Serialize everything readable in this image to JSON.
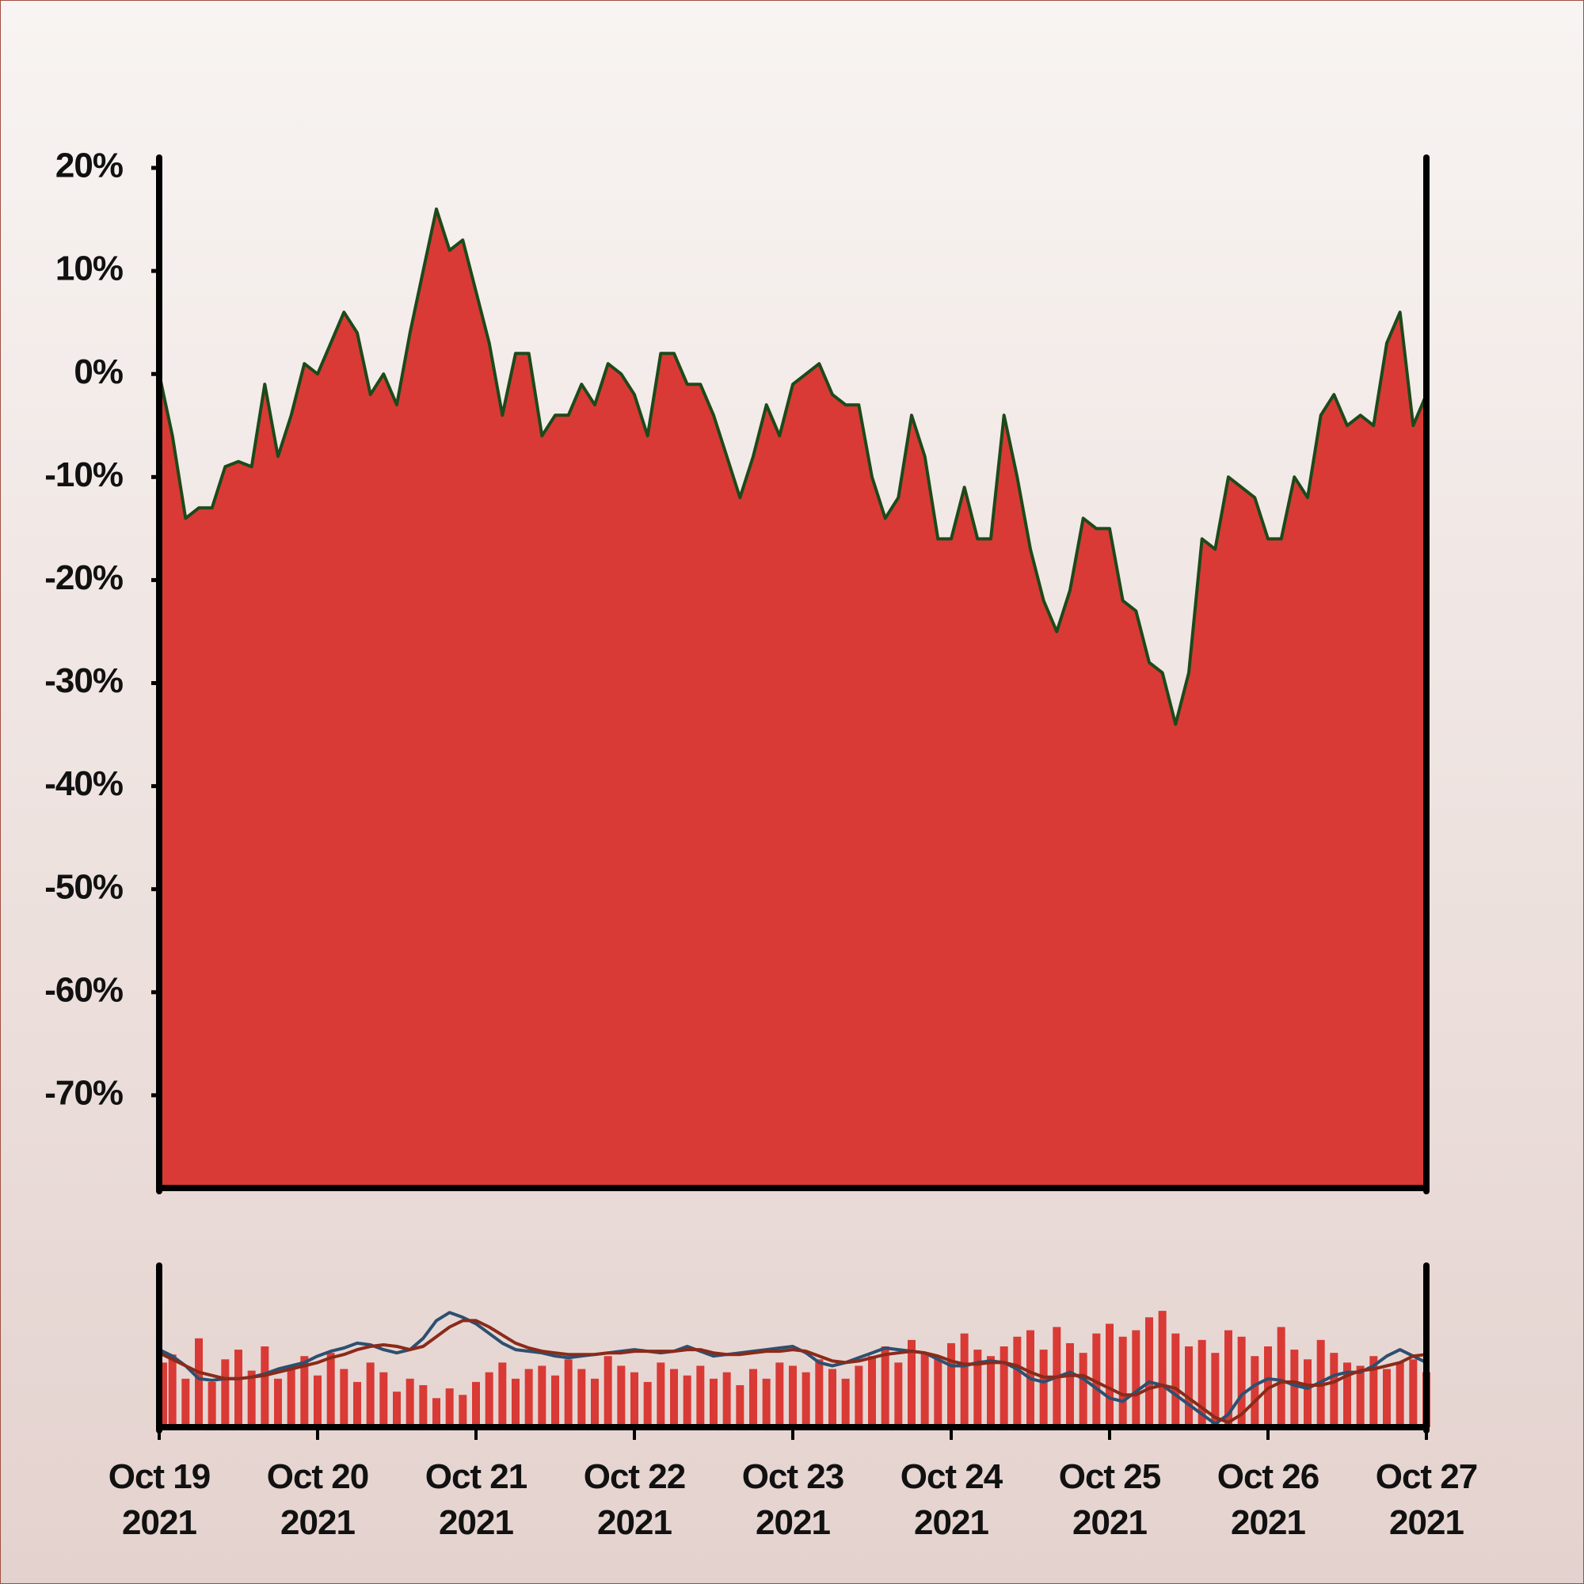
{
  "chart_data": [
    {
      "type": "area",
      "line_color": "#1d4a1a",
      "fill": "#d93a35",
      "xlim": [
        "2021-10-19 00:00",
        "2021-10-27 00:00"
      ],
      "ylim": [
        -79,
        21
      ],
      "yticks": [
        {
          "value": 20,
          "label": "20%"
        },
        {
          "value": 10,
          "label": "10%"
        },
        {
          "value": 0,
          "label": "0%"
        },
        {
          "value": -10,
          "label": "-10%"
        },
        {
          "value": -20,
          "label": "-20%"
        },
        {
          "value": -30,
          "label": "-30%"
        },
        {
          "value": -40,
          "label": "-40%"
        },
        {
          "value": -50,
          "label": "-50%"
        },
        {
          "value": -60,
          "label": "-60%"
        },
        {
          "value": -70,
          "label": "-70%"
        }
      ],
      "x": [
        "2021-10-19 00:00",
        "2021-10-19 02:00",
        "2021-10-19 04:00",
        "2021-10-19 06:00",
        "2021-10-19 08:00",
        "2021-10-19 10:00",
        "2021-10-19 12:00",
        "2021-10-19 14:00",
        "2021-10-19 16:00",
        "2021-10-19 18:00",
        "2021-10-19 20:00",
        "2021-10-19 22:00",
        "2021-10-20 00:00",
        "2021-10-20 02:00",
        "2021-10-20 04:00",
        "2021-10-20 06:00",
        "2021-10-20 08:00",
        "2021-10-20 10:00",
        "2021-10-20 12:00",
        "2021-10-20 14:00",
        "2021-10-20 16:00",
        "2021-10-20 18:00",
        "2021-10-20 20:00",
        "2021-10-20 22:00",
        "2021-10-21 00:00",
        "2021-10-21 02:00",
        "2021-10-21 04:00",
        "2021-10-21 06:00",
        "2021-10-21 08:00",
        "2021-10-21 10:00",
        "2021-10-21 12:00",
        "2021-10-21 14:00",
        "2021-10-21 16:00",
        "2021-10-21 18:00",
        "2021-10-21 20:00",
        "2021-10-21 22:00",
        "2021-10-22 00:00",
        "2021-10-22 02:00",
        "2021-10-22 04:00",
        "2021-10-22 06:00",
        "2021-10-22 08:00",
        "2021-10-22 10:00",
        "2021-10-22 12:00",
        "2021-10-22 14:00",
        "2021-10-22 16:00",
        "2021-10-22 18:00",
        "2021-10-22 20:00",
        "2021-10-22 22:00",
        "2021-10-23 00:00",
        "2021-10-23 02:00",
        "2021-10-23 04:00",
        "2021-10-23 06:00",
        "2021-10-23 08:00",
        "2021-10-23 10:00",
        "2021-10-23 12:00",
        "2021-10-23 14:00",
        "2021-10-23 16:00",
        "2021-10-23 18:00",
        "2021-10-23 20:00",
        "2021-10-23 22:00",
        "2021-10-24 00:00",
        "2021-10-24 02:00",
        "2021-10-24 04:00",
        "2021-10-24 06:00",
        "2021-10-24 08:00",
        "2021-10-24 10:00",
        "2021-10-24 12:00",
        "2021-10-24 14:00",
        "2021-10-24 16:00",
        "2021-10-24 18:00",
        "2021-10-24 20:00",
        "2021-10-24 22:00",
        "2021-10-25 00:00",
        "2021-10-25 02:00",
        "2021-10-25 04:00",
        "2021-10-25 06:00",
        "2021-10-25 08:00",
        "2021-10-25 10:00",
        "2021-10-25 12:00",
        "2021-10-25 14:00",
        "2021-10-25 16:00",
        "2021-10-25 18:00",
        "2021-10-25 20:00",
        "2021-10-25 22:00",
        "2021-10-26 00:00",
        "2021-10-26 02:00",
        "2021-10-26 04:00",
        "2021-10-26 06:00",
        "2021-10-26 08:00",
        "2021-10-26 10:00",
        "2021-10-26 12:00",
        "2021-10-26 14:00",
        "2021-10-26 16:00",
        "2021-10-26 18:00",
        "2021-10-26 20:00",
        "2021-10-26 22:00",
        "2021-10-27 00:00"
      ],
      "values": [
        0,
        -6,
        -14,
        -13,
        -13,
        -9,
        -8.5,
        -9,
        -1,
        -8,
        -4,
        1,
        0,
        3,
        6,
        4,
        -2,
        0,
        -3,
        4,
        10,
        16,
        12,
        13,
        8,
        3,
        -4,
        2,
        2,
        -6,
        -4,
        -4,
        -1,
        -3,
        1,
        0,
        -2,
        -6,
        2,
        2,
        -1,
        -1,
        -4,
        -8,
        -12,
        -8,
        -3,
        -6,
        -1,
        0,
        1,
        -2,
        -3,
        -3,
        -10,
        -14,
        -12,
        -4,
        -8,
        -16,
        -16,
        -11,
        -16,
        -16,
        -4,
        -10,
        -17,
        -22,
        -25,
        -21,
        -14,
        -15,
        -15,
        -22,
        -23,
        -28,
        -29,
        -34,
        -29,
        -16,
        -17,
        -10,
        -11,
        -12,
        -16,
        -16,
        -10,
        -12,
        -4,
        -2,
        -5,
        -4,
        -5,
        3,
        6,
        -5,
        -2
      ]
    },
    {
      "type": "volume",
      "xlim": [
        "2021-10-19 00:00",
        "2021-10-27 00:00"
      ],
      "ylim": [
        0,
        100
      ],
      "xticks": [
        {
          "value": "2021-10-19 00:00",
          "label": "Oct 19\n2021"
        },
        {
          "value": "2021-10-20 00:00",
          "label": "Oct 20\n2021"
        },
        {
          "value": "2021-10-21 00:00",
          "label": "Oct 21\n2021"
        },
        {
          "value": "2021-10-22 00:00",
          "label": "Oct 22\n2021"
        },
        {
          "value": "2021-10-23 00:00",
          "label": "Oct 23\n2021"
        },
        {
          "value": "2021-10-24 00:00",
          "label": "Oct 24\n2021"
        },
        {
          "value": "2021-10-25 00:00",
          "label": "Oct 25\n2021"
        },
        {
          "value": "2021-10-26 00:00",
          "label": "Oct 26\n2021"
        },
        {
          "value": "2021-10-27 00:00",
          "label": "Oct 27\n2021"
        }
      ],
      "x": [
        "2021-10-19 00:00",
        "2021-10-19 02:00",
        "2021-10-19 04:00",
        "2021-10-19 06:00",
        "2021-10-19 08:00",
        "2021-10-19 10:00",
        "2021-10-19 12:00",
        "2021-10-19 14:00",
        "2021-10-19 16:00",
        "2021-10-19 18:00",
        "2021-10-19 20:00",
        "2021-10-19 22:00",
        "2021-10-20 00:00",
        "2021-10-20 02:00",
        "2021-10-20 04:00",
        "2021-10-20 06:00",
        "2021-10-20 08:00",
        "2021-10-20 10:00",
        "2021-10-20 12:00",
        "2021-10-20 14:00",
        "2021-10-20 16:00",
        "2021-10-20 18:00",
        "2021-10-20 20:00",
        "2021-10-20 22:00",
        "2021-10-21 00:00",
        "2021-10-21 02:00",
        "2021-10-21 04:00",
        "2021-10-21 06:00",
        "2021-10-21 08:00",
        "2021-10-21 10:00",
        "2021-10-21 12:00",
        "2021-10-21 14:00",
        "2021-10-21 16:00",
        "2021-10-21 18:00",
        "2021-10-21 20:00",
        "2021-10-21 22:00",
        "2021-10-22 00:00",
        "2021-10-22 02:00",
        "2021-10-22 04:00",
        "2021-10-22 06:00",
        "2021-10-22 08:00",
        "2021-10-22 10:00",
        "2021-10-22 12:00",
        "2021-10-22 14:00",
        "2021-10-22 16:00",
        "2021-10-22 18:00",
        "2021-10-22 20:00",
        "2021-10-22 22:00",
        "2021-10-23 00:00",
        "2021-10-23 02:00",
        "2021-10-23 04:00",
        "2021-10-23 06:00",
        "2021-10-23 08:00",
        "2021-10-23 10:00",
        "2021-10-23 12:00",
        "2021-10-23 14:00",
        "2021-10-23 16:00",
        "2021-10-23 18:00",
        "2021-10-23 20:00",
        "2021-10-23 22:00",
        "2021-10-24 00:00",
        "2021-10-24 02:00",
        "2021-10-24 04:00",
        "2021-10-24 06:00",
        "2021-10-24 08:00",
        "2021-10-24 10:00",
        "2021-10-24 12:00",
        "2021-10-24 14:00",
        "2021-10-24 16:00",
        "2021-10-24 18:00",
        "2021-10-24 20:00",
        "2021-10-24 22:00",
        "2021-10-25 00:00",
        "2021-10-25 02:00",
        "2021-10-25 04:00",
        "2021-10-25 06:00",
        "2021-10-25 08:00",
        "2021-10-25 10:00",
        "2021-10-25 12:00",
        "2021-10-25 14:00",
        "2021-10-25 16:00",
        "2021-10-25 18:00",
        "2021-10-25 20:00",
        "2021-10-25 22:00",
        "2021-10-26 00:00",
        "2021-10-26 02:00",
        "2021-10-26 04:00",
        "2021-10-26 06:00",
        "2021-10-26 08:00",
        "2021-10-26 10:00",
        "2021-10-26 12:00",
        "2021-10-26 14:00",
        "2021-10-26 16:00",
        "2021-10-26 18:00",
        "2021-10-26 20:00",
        "2021-10-26 22:00",
        "2021-10-27 00:00"
      ],
      "series": [
        {
          "type": "bar",
          "color": "#d93a35",
          "values": [
            40,
            45,
            30,
            55,
            28,
            42,
            48,
            35,
            50,
            30,
            38,
            44,
            32,
            46,
            36,
            28,
            40,
            34,
            22,
            30,
            26,
            18,
            24,
            20,
            28,
            34,
            40,
            30,
            36,
            38,
            32,
            42,
            36,
            30,
            44,
            38,
            34,
            28,
            40,
            36,
            32,
            38,
            30,
            34,
            26,
            36,
            30,
            40,
            38,
            34,
            42,
            36,
            30,
            38,
            44,
            50,
            40,
            54,
            46,
            42,
            52,
            58,
            48,
            44,
            50,
            56,
            60,
            48,
            62,
            52,
            46,
            58,
            64,
            56,
            60,
            68,
            72,
            58,
            50,
            54,
            46,
            60,
            56,
            44,
            50,
            62,
            48,
            42,
            54,
            46,
            40,
            38,
            44,
            36,
            40,
            42,
            34
          ]
        },
        {
          "type": "line",
          "color": "#2c5070",
          "values": [
            48,
            44,
            38,
            30,
            29,
            30,
            30,
            31,
            33,
            36,
            38,
            40,
            44,
            47,
            49,
            52,
            51,
            48,
            46,
            48,
            55,
            66,
            71,
            68,
            64,
            58,
            52,
            48,
            47,
            46,
            44,
            43,
            44,
            45,
            46,
            47,
            48,
            47,
            46,
            47,
            50,
            47,
            44,
            45,
            46,
            47,
            48,
            49,
            50,
            46,
            40,
            38,
            40,
            43,
            46,
            49,
            48,
            47,
            46,
            42,
            38,
            38,
            40,
            41,
            40,
            36,
            30,
            28,
            31,
            34,
            30,
            24,
            18,
            16,
            22,
            28,
            26,
            20,
            14,
            8,
            2,
            8,
            20,
            26,
            30,
            29,
            26,
            24,
            28,
            32,
            34,
            34,
            38,
            44,
            48,
            44,
            40
          ]
        },
        {
          "type": "line",
          "color": "#8b2a1a",
          "values": [
            46,
            42,
            38,
            34,
            32,
            30,
            30,
            31,
            32,
            34,
            36,
            38,
            40,
            43,
            45,
            48,
            50,
            51,
            50,
            48,
            50,
            56,
            62,
            66,
            66,
            62,
            57,
            52,
            49,
            47,
            46,
            45,
            45,
            45,
            46,
            46,
            47,
            47,
            47,
            47,
            48,
            48,
            46,
            45,
            45,
            46,
            47,
            47,
            48,
            47,
            44,
            41,
            40,
            41,
            43,
            45,
            46,
            47,
            46,
            44,
            41,
            39,
            39,
            40,
            40,
            38,
            34,
            31,
            31,
            32,
            32,
            28,
            24,
            20,
            20,
            24,
            26,
            24,
            18,
            12,
            6,
            3,
            8,
            16,
            24,
            28,
            28,
            26,
            26,
            28,
            32,
            35,
            36,
            38,
            40,
            44,
            45
          ]
        }
      ]
    }
  ]
}
